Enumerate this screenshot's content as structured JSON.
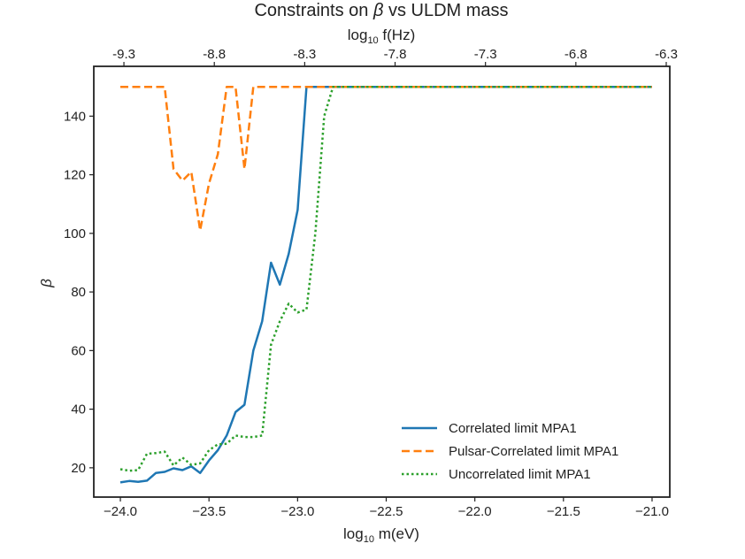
{
  "chart_data": {
    "type": "line",
    "title_prefix": "Constraints on ",
    "title_symbol": "β",
    "title_suffix": " vs ULDM mass",
    "xlabel_prefix": "log",
    "xlabel_sub": "10",
    "xlabel_suffix": " m(eV)",
    "x2label_prefix": "log",
    "x2label_sub": "10",
    "x2label_suffix": " f(Hz)",
    "ylabel": "β",
    "xlim": [
      -24.15,
      -20.9
    ],
    "ylim": [
      10,
      157
    ],
    "xticks": [
      -24.0,
      -23.5,
      -23.0,
      -22.5,
      -22.0,
      -21.5,
      -21.0
    ],
    "xtick_labels": [
      "−24.0",
      "−23.5",
      "−23.0",
      "−22.5",
      "−22.0",
      "−21.5",
      "−21.0"
    ],
    "yticks": [
      20,
      40,
      60,
      80,
      100,
      120,
      140
    ],
    "ytick_labels": [
      "20",
      "40",
      "60",
      "80",
      "100",
      "120",
      "140"
    ],
    "x2ticks": [
      -23.98,
      -23.47,
      -22.96,
      -22.45,
      -21.94,
      -21.43,
      -20.92
    ],
    "x2tick_labels": [
      "-9.3",
      "-8.8",
      "-8.3",
      "-7.8",
      "-7.3",
      "-6.8",
      "-6.3"
    ],
    "legend_position": "lower-right",
    "grid": false,
    "series": [
      {
        "name": "Correlated limit MPA1",
        "color": "#1f77b4",
        "style": "solid",
        "x": [
          -24.0,
          -23.95,
          -23.9,
          -23.85,
          -23.8,
          -23.75,
          -23.7,
          -23.65,
          -23.6,
          -23.55,
          -23.5,
          -23.45,
          -23.4,
          -23.35,
          -23.3,
          -23.25,
          -23.2,
          -23.15,
          -23.1,
          -23.05,
          -23.0,
          -22.95,
          -22.9,
          -22.85,
          -22.8,
          -22.75,
          -21.0
        ],
        "y": [
          15,
          15.5,
          15.2,
          15.6,
          18.2,
          18.6,
          19.8,
          19.2,
          20.5,
          18.2,
          22.5,
          26,
          31,
          39,
          41.5,
          60,
          70,
          90,
          82.5,
          93,
          108,
          150,
          150,
          150,
          150,
          150,
          150
        ]
      },
      {
        "name": "Pulsar-Correlated limit MPA1",
        "color": "#ff7f0e",
        "style": "dashed",
        "x": [
          -24.0,
          -23.9,
          -23.8,
          -23.75,
          -23.7,
          -23.65,
          -23.6,
          -23.55,
          -23.5,
          -23.45,
          -23.4,
          -23.35,
          -23.3,
          -23.25,
          -23.2,
          -23.15,
          -23.1,
          -21.0
        ],
        "y": [
          150,
          150,
          150,
          150,
          122,
          118,
          121,
          101,
          117,
          127,
          150,
          150,
          122,
          150,
          150,
          150,
          150,
          150
        ]
      },
      {
        "name": "Uncorrelated limit MPA1",
        "color": "#2ca02c",
        "style": "dotted",
        "x": [
          -24.0,
          -23.95,
          -23.9,
          -23.85,
          -23.8,
          -23.75,
          -23.7,
          -23.65,
          -23.6,
          -23.55,
          -23.5,
          -23.45,
          -23.4,
          -23.35,
          -23.3,
          -23.25,
          -23.2,
          -23.15,
          -23.1,
          -23.05,
          -23.0,
          -22.95,
          -22.9,
          -22.85,
          -22.8,
          -22.75,
          -22.7,
          -21.0
        ],
        "y": [
          19.5,
          19,
          19.2,
          24.8,
          25,
          25.5,
          20.8,
          23.5,
          21,
          21.5,
          26,
          28,
          28.2,
          31,
          30.5,
          30.5,
          31,
          62,
          70,
          76,
          73,
          74,
          100,
          140,
          150,
          150,
          150,
          150
        ]
      }
    ]
  }
}
